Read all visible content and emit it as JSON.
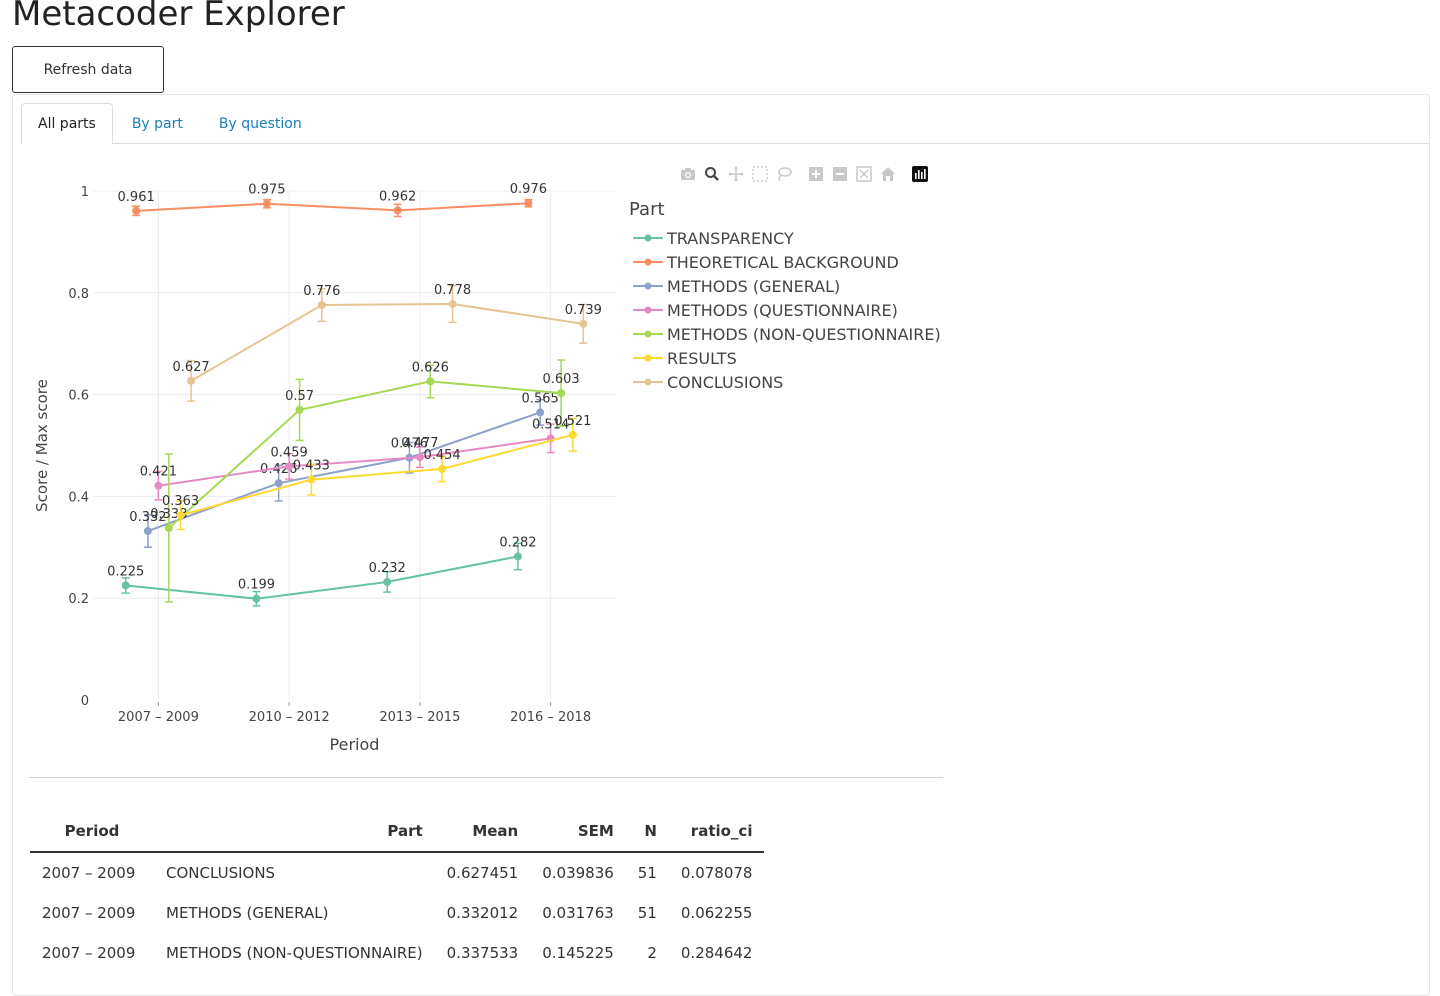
{
  "app": {
    "title": "Metacoder Explorer",
    "refresh_label": "Refresh data"
  },
  "tabs": [
    {
      "label": "All parts",
      "active": true
    },
    {
      "label": "By part",
      "active": false
    },
    {
      "label": "By question",
      "active": false
    }
  ],
  "modebar": [
    "camera-icon",
    "zoom-icon",
    "pan-icon",
    "box-select-icon",
    "lasso-icon",
    "zoom-in-icon",
    "zoom-out-icon",
    "autoscale-icon",
    "reset-axes-icon",
    "plotly-logo-icon"
  ],
  "chart_data": {
    "type": "line",
    "categories": [
      "2007 – 2009",
      "2010 – 2012",
      "2013 – 2015",
      "2016 – 2018"
    ],
    "xlabel": "Period",
    "ylabel": "Score / Max score",
    "ylim": [
      0,
      1
    ],
    "yticks": [
      "0",
      "0.2",
      "0.4",
      "0.6",
      "0.8",
      "1"
    ],
    "legend_title": "Part",
    "legend_position": "right",
    "grid": true,
    "series": [
      {
        "name": "TRANSPARENCY",
        "color": "#66c2a5",
        "offset": -0.25,
        "values": [
          0.225,
          0.199,
          0.232,
          0.282
        ],
        "labels": [
          "0.225",
          "0.199",
          "0.232",
          "0.282"
        ],
        "errors": [
          0.015,
          0.014,
          0.02,
          0.026
        ]
      },
      {
        "name": "THEORETICAL BACKGROUND",
        "color": "#fc8d62",
        "offset": -0.17,
        "values": [
          0.961,
          0.975,
          0.962,
          0.976
        ],
        "labels": [
          "0.961",
          "0.975",
          "0.962",
          "0.976"
        ],
        "errors": [
          0.009,
          0.008,
          0.012,
          0.007
        ]
      },
      {
        "name": "METHODS (GENERAL)",
        "color": "#8da0cb",
        "offset": -0.08,
        "values": [
          0.332,
          0.426,
          0.476,
          0.565
        ],
        "labels": [
          "0.332",
          "0.426",
          "0.476",
          "0.565"
        ],
        "errors": [
          0.031763,
          0.035,
          0.03,
          0.025
        ]
      },
      {
        "name": "METHODS (QUESTIONNAIRE)",
        "color": "#e78ac3",
        "offset": 0.0,
        "values": [
          0.421,
          0.459,
          0.477,
          0.514
        ],
        "labels": [
          "0.421",
          "0.459",
          "0.477",
          "0.514"
        ],
        "errors": [
          0.028,
          0.025,
          0.02,
          0.028
        ]
      },
      {
        "name": "METHODS (NON-QUESTIONNAIRE)",
        "color": "#a6d854",
        "offset": 0.08,
        "values": [
          0.338,
          0.57,
          0.626,
          0.603
        ],
        "labels": [
          "0.338",
          "0.57",
          "0.626",
          "0.603"
        ],
        "errors": [
          0.145225,
          0.06,
          0.032,
          0.065
        ]
      },
      {
        "name": "RESULTS",
        "color": "#ffd92f",
        "offset": 0.17,
        "values": [
          0.363,
          0.433,
          0.454,
          0.521
        ],
        "labels": [
          "0.363",
          "0.433",
          "0.454",
          "0.521"
        ],
        "errors": [
          0.028,
          0.03,
          0.025,
          0.032
        ]
      },
      {
        "name": "CONCLUSIONS",
        "color": "#e5c494",
        "offset": 0.25,
        "values": [
          0.627,
          0.776,
          0.778,
          0.739
        ],
        "labels": [
          "0.627",
          "0.776",
          "0.778",
          "0.739"
        ],
        "errors": [
          0.039836,
          0.032,
          0.036,
          0.038
        ]
      }
    ]
  },
  "table": {
    "headers": [
      "Period",
      "Part",
      "Mean",
      "SEM",
      "N",
      "ratio_ci"
    ],
    "rows": [
      [
        "2007 – 2009",
        "CONCLUSIONS",
        "0.627451",
        "0.039836",
        "51",
        "0.078078"
      ],
      [
        "2007 – 2009",
        "METHODS (GENERAL)",
        "0.332012",
        "0.031763",
        "51",
        "0.062255"
      ],
      [
        "2007 – 2009",
        "METHODS (NON-QUESTIONNAIRE)",
        "0.337533",
        "0.145225",
        "2",
        "0.284642"
      ]
    ]
  }
}
